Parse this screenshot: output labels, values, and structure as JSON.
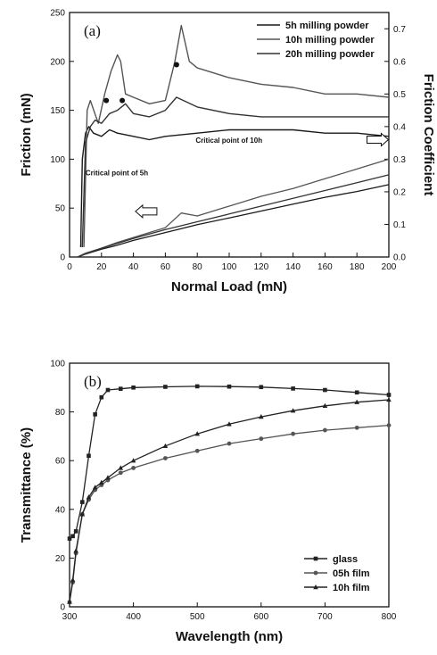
{
  "chart_data": [
    {
      "type": "line",
      "panel_label": "(a)",
      "xlabel": "Normal Load (mN)",
      "ylabel": "Friction (mN)",
      "y2label": "Friction Coefficient",
      "xlim": [
        0,
        200
      ],
      "ylim": [
        0,
        250
      ],
      "y2lim": [
        0,
        0.75
      ],
      "xticks": [
        0,
        20,
        40,
        60,
        80,
        100,
        120,
        140,
        160,
        180,
        200
      ],
      "yticks": [
        0,
        50,
        100,
        150,
        200,
        250
      ],
      "y2ticks": [
        0.0,
        0.1,
        0.2,
        0.3,
        0.4,
        0.5,
        0.6,
        0.7
      ],
      "legend_position": "top-right",
      "grid": false,
      "series": [
        {
          "name": "5h milling powder",
          "color": "#1a1a1a",
          "axis": "left",
          "role": "friction",
          "x": [
            5,
            10,
            20,
            30,
            40,
            60,
            80,
            100,
            120,
            140,
            160,
            180,
            200
          ],
          "y": [
            0,
            3,
            8,
            12,
            17,
            25,
            33,
            40,
            47,
            54,
            61,
            67,
            74
          ]
        },
        {
          "name": "10h milling powder",
          "color": "#555555",
          "axis": "left",
          "role": "friction",
          "x": [
            5,
            10,
            20,
            30,
            40,
            60,
            70,
            80,
            100,
            120,
            140,
            160,
            180,
            200
          ],
          "y": [
            0,
            4,
            9,
            15,
            20,
            30,
            45,
            42,
            52,
            62,
            70,
            80,
            90,
            100
          ]
        },
        {
          "name": "20h milling powder",
          "color": "#333333",
          "axis": "left",
          "role": "friction",
          "x": [
            5,
            10,
            20,
            30,
            40,
            60,
            80,
            100,
            120,
            140,
            160,
            180,
            200
          ],
          "y": [
            0,
            3,
            9,
            14,
            19,
            28,
            36,
            44,
            52,
            60,
            68,
            76,
            84
          ]
        },
        {
          "name": "5h milling powder",
          "color": "#1a1a1a",
          "axis": "right",
          "role": "coefficient",
          "x": [
            7,
            8,
            10,
            12,
            15,
            20,
            25,
            30,
            40,
            50,
            60,
            80,
            100,
            120,
            140,
            160,
            180,
            200
          ],
          "y": [
            0.03,
            0.3,
            0.38,
            0.4,
            0.38,
            0.37,
            0.39,
            0.38,
            0.37,
            0.36,
            0.37,
            0.38,
            0.39,
            0.39,
            0.39,
            0.38,
            0.38,
            0.37
          ]
        },
        {
          "name": "10h milling powder",
          "color": "#555555",
          "axis": "right",
          "role": "coefficient",
          "x": [
            9,
            11,
            13,
            18,
            22,
            26,
            30,
            32,
            35,
            40,
            50,
            60,
            66,
            70,
            75,
            80,
            100,
            120,
            140,
            160,
            180,
            200
          ],
          "y": [
            0.03,
            0.45,
            0.48,
            0.41,
            0.5,
            0.57,
            0.62,
            0.6,
            0.5,
            0.49,
            0.47,
            0.48,
            0.6,
            0.71,
            0.6,
            0.58,
            0.55,
            0.53,
            0.52,
            0.5,
            0.5,
            0.49
          ]
        },
        {
          "name": "20h milling powder",
          "color": "#333333",
          "axis": "right",
          "role": "coefficient",
          "x": [
            8,
            10,
            13,
            16,
            20,
            25,
            30,
            35,
            40,
            50,
            60,
            67,
            80,
            100,
            120,
            140,
            160,
            180,
            200
          ],
          "y": [
            0.03,
            0.35,
            0.4,
            0.42,
            0.41,
            0.44,
            0.45,
            0.47,
            0.44,
            0.43,
            0.45,
            0.49,
            0.46,
            0.44,
            0.43,
            0.43,
            0.43,
            0.43,
            0.43
          ]
        }
      ],
      "critical_points": [
        {
          "x": 23,
          "y": 0.48
        },
        {
          "x": 33,
          "y": 0.48
        },
        {
          "x": 67,
          "y": 0.59
        }
      ],
      "annotations": [
        {
          "text": "Critical point of 5h",
          "x": 10,
          "y2": 0.25
        },
        {
          "text": "Critical point of 10h",
          "x": 79,
          "y2": 0.35
        }
      ],
      "arrows": [
        {
          "direction": "right",
          "x": 193,
          "y2": 0.36
        },
        {
          "direction": "left",
          "x": 48,
          "y2": 0.14
        }
      ]
    },
    {
      "type": "line",
      "panel_label": "(b)",
      "xlabel": "Wavelength (nm)",
      "ylabel": "Transmittance (%)",
      "xlim": [
        300,
        800
      ],
      "ylim": [
        0,
        100
      ],
      "xticks": [
        300,
        400,
        500,
        600,
        700,
        800
      ],
      "yticks": [
        0,
        20,
        40,
        60,
        80,
        100
      ],
      "legend_position": "bottom-right",
      "grid": false,
      "series": [
        {
          "name": "glass",
          "marker": "square",
          "color": "#222222",
          "x": [
            300,
            305,
            310,
            320,
            330,
            340,
            350,
            360,
            380,
            400,
            450,
            500,
            550,
            600,
            650,
            700,
            750,
            800
          ],
          "y": [
            28,
            29,
            31,
            43,
            62,
            79,
            86,
            89,
            89.5,
            90,
            90.3,
            90.5,
            90.4,
            90.2,
            89.6,
            89,
            88,
            87
          ]
        },
        {
          "name": "05h film",
          "marker": "circle",
          "color": "#555555",
          "x": [
            300,
            305,
            310,
            320,
            330,
            340,
            350,
            360,
            380,
            400,
            450,
            500,
            550,
            600,
            650,
            700,
            750,
            800
          ],
          "y": [
            2,
            10,
            22,
            38,
            44,
            48,
            50,
            52,
            55,
            57,
            61,
            64,
            67,
            69,
            71,
            72.5,
            73.5,
            74.5
          ]
        },
        {
          "name": "10h film",
          "marker": "triangle",
          "color": "#222222",
          "x": [
            300,
            305,
            310,
            320,
            330,
            340,
            350,
            360,
            380,
            400,
            450,
            500,
            550,
            600,
            650,
            700,
            750,
            800
          ],
          "y": [
            2,
            11,
            23,
            38,
            45,
            49,
            51,
            53,
            57,
            60,
            66,
            71,
            75,
            78,
            80.5,
            82.5,
            84,
            85
          ]
        }
      ]
    }
  ]
}
